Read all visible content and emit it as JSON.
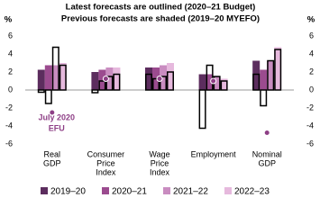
{
  "chart_data": {
    "type": "bar",
    "title": "Latest forecasts are outlined (2020–21 Budget)",
    "subtitle": "Previous forecasts are shaded (2019–20 MYEFO)",
    "y_label": "%",
    "y2_label": "%",
    "categories": [
      [
        "Real",
        "GDP"
      ],
      [
        "Consumer",
        "Price",
        "Index"
      ],
      [
        "Wage",
        "Price",
        "Index"
      ],
      [
        "Employment"
      ],
      [
        "Nominal",
        "GDP"
      ]
    ],
    "series": [
      {
        "name": "2019–20",
        "color": "#5c2d5e",
        "values": [
          2.25,
          2.0,
          2.5,
          1.75,
          3.25
        ],
        "outlined_values": [
          -0.25,
          -0.3,
          1.75,
          -4.25,
          1.75
        ]
      },
      {
        "name": "2020–21",
        "color": "#9b4b8f",
        "values": [
          2.75,
          2.25,
          2.5,
          1.75,
          2.25
        ],
        "outlined_values": [
          -1.5,
          1.0,
          1.25,
          2.75,
          -1.75
        ]
      },
      {
        "name": "2021–22",
        "color": "#c98cc0",
        "values": [
          2.75,
          2.5,
          2.75,
          1.5,
          3.25
        ],
        "outlined_values": [
          4.75,
          1.5,
          1.5,
          1.5,
          3.25
        ]
      },
      {
        "name": "2022–23",
        "color": "#e6b9dd",
        "values": [
          3.0,
          2.5,
          3.0,
          1.25,
          4.75
        ],
        "outlined_values": [
          2.75,
          1.75,
          2.0,
          1.0,
          4.5
        ]
      }
    ],
    "efu": {
      "label": [
        "July 2020",
        "EFU"
      ],
      "color": "#8e3f86",
      "values": [
        -2.5,
        1.25,
        1.25,
        1.0,
        -4.75
      ]
    },
    "ylim": [
      -6,
      6
    ],
    "yticks": [
      -6,
      -4,
      -2,
      0,
      2,
      4,
      6
    ],
    "y2lim": [
      -6,
      6
    ],
    "y2ticks": [
      -6,
      -4,
      -2,
      0,
      2,
      4,
      6
    ],
    "outline_color": "#000000",
    "legend": "bottom"
  }
}
